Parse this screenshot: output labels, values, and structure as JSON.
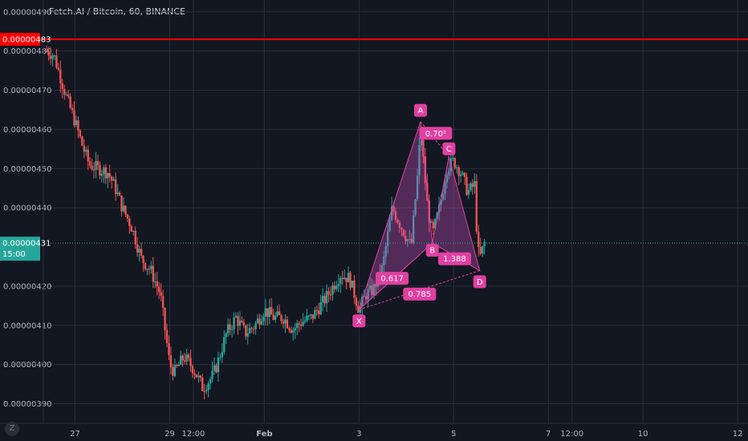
{
  "header": {
    "title": "Fetch.AI / Bitcoin, 60, BINANCE"
  },
  "colors": {
    "background": "#131722",
    "grid": "#2a2e39",
    "up": "#26a69a",
    "down": "#ef5350",
    "pattern": "#e040a0",
    "pattern_fill": "#c850c0",
    "resistance": "#ff0000",
    "current_price": "#26a69a",
    "axis_text": "#b2b5be"
  },
  "chart_data": {
    "type": "candlestick",
    "title": "Fetch.AI / Bitcoin, 60, BINANCE",
    "ylim": [
      3.85e-06,
      4.92e-06
    ],
    "y_ticks": [
      "0.00000480",
      "0.00000470",
      "0.00000460",
      "0.00000450",
      "0.00000440",
      "0.00000420",
      "0.00000410",
      "0.00000400",
      "0.00000390",
      "0.00000490"
    ],
    "x_ticks": [
      "27",
      "29",
      "12:00",
      "Feb",
      "3",
      "5",
      "7",
      "12:00",
      "10",
      "12"
    ],
    "x_tick_positions": [
      27,
      29,
      29.5,
      31,
      33,
      35,
      37,
      37.5,
      39,
      41
    ],
    "xlim": [
      26.33,
      41.1
    ],
    "resistance_level": {
      "value": "0.00000483"
    },
    "current_price": {
      "value": "0.00000431",
      "countdown": "15:00"
    },
    "close_path": [
      [
        26.4,
        4.8e-06
      ],
      [
        26.55,
        4.79e-06
      ],
      [
        26.7,
        4.73e-06
      ],
      [
        26.85,
        4.67e-06
      ],
      [
        27.0,
        4.62e-06
      ],
      [
        27.15,
        4.56e-06
      ],
      [
        27.3,
        4.51e-06
      ],
      [
        27.5,
        4.5e-06
      ],
      [
        27.7,
        4.49e-06
      ],
      [
        27.85,
        4.45e-06
      ],
      [
        28.0,
        4.4e-06
      ],
      [
        28.2,
        4.35e-06
      ],
      [
        28.4,
        4.27e-06
      ],
      [
        28.6,
        4.24e-06
      ],
      [
        28.8,
        4.18e-06
      ],
      [
        29.0,
        4e-06
      ],
      [
        29.1,
        3.98e-06
      ],
      [
        29.3,
        4.02e-06
      ],
      [
        29.5,
        3.99e-06
      ],
      [
        29.7,
        3.94e-06
      ],
      [
        29.9,
        3.97e-06
      ],
      [
        30.0,
        4e-06
      ],
      [
        30.2,
        4.08e-06
      ],
      [
        30.4,
        4.12e-06
      ],
      [
        30.6,
        4.08e-06
      ],
      [
        30.8,
        4.1e-06
      ],
      [
        31.0,
        4.14e-06
      ],
      [
        31.2,
        4.12e-06
      ],
      [
        31.4,
        4.12e-06
      ],
      [
        31.6,
        4.09e-06
      ],
      [
        31.8,
        4.11e-06
      ],
      [
        32.0,
        4.12e-06
      ],
      [
        32.3,
        4.17e-06
      ],
      [
        32.6,
        4.23e-06
      ],
      [
        32.8,
        4.22e-06
      ],
      [
        33.0,
        4.14e-06
      ],
      [
        33.15,
        4.18e-06
      ],
      [
        33.3,
        4.19e-06
      ],
      [
        33.5,
        4.25e-06
      ],
      [
        33.7,
        4.4e-06
      ],
      [
        33.9,
        4.35e-06
      ],
      [
        34.1,
        4.3e-06
      ],
      [
        34.25,
        4.5e-06
      ],
      [
        34.3,
        4.6e-06
      ],
      [
        34.45,
        4.4e-06
      ],
      [
        34.55,
        4.33e-06
      ],
      [
        34.7,
        4.4e-06
      ],
      [
        34.85,
        4.5e-06
      ],
      [
        35.0,
        4.52e-06
      ],
      [
        35.15,
        4.49e-06
      ],
      [
        35.3,
        4.44e-06
      ],
      [
        35.45,
        4.46e-06
      ],
      [
        35.5,
        4.3e-06
      ],
      [
        35.55,
        4.27e-06
      ],
      [
        35.6,
        4.29e-06
      ],
      [
        35.65,
        4.31e-06
      ]
    ],
    "harmonic_pattern": {
      "points": [
        {
          "label": "X",
          "x": 33.0,
          "y": 4.14e-06
        },
        {
          "label": "A",
          "x": 34.3,
          "y": 4.62e-06
        },
        {
          "label": "B",
          "x": 34.55,
          "y": 4.31e-06
        },
        {
          "label": "C",
          "x": 34.9,
          "y": 4.53e-06
        },
        {
          "label": "D",
          "x": 35.55,
          "y": 4.24e-06
        }
      ],
      "ratios": [
        {
          "label": "0.617",
          "x": 33.7,
          "y": 4.22e-06
        },
        {
          "label": "0.785",
          "x": 34.28,
          "y": 4.18e-06
        },
        {
          "label": "0.70¹",
          "x": 34.62,
          "y": 4.59e-06
        },
        {
          "label": "1.388",
          "x": 35.02,
          "y": 4.27e-06
        }
      ]
    }
  }
}
